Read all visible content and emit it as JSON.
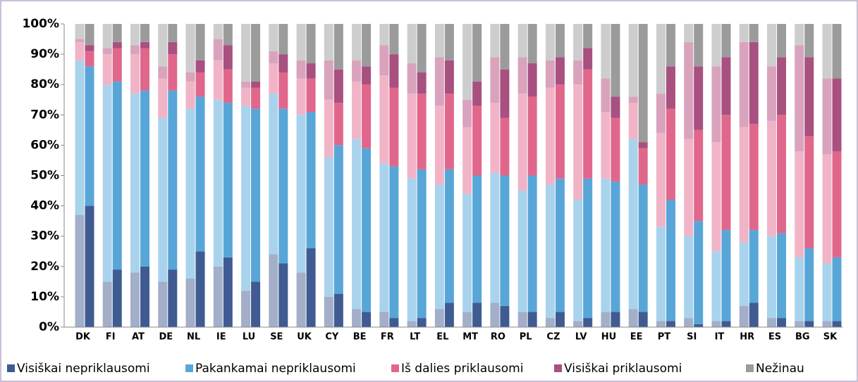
{
  "chart_data": {
    "type": "stacked_bar_pairs",
    "categories": [
      "DK",
      "FI",
      "AT",
      "DE",
      "NL",
      "IE",
      "LU",
      "SE",
      "UK",
      "CY",
      "BE",
      "FR",
      "LT",
      "EL",
      "MT",
      "RO",
      "PL",
      "CZ",
      "LV",
      "HU",
      "EE",
      "PT",
      "SI",
      "IT",
      "HR",
      "ES",
      "BG",
      "SK"
    ],
    "ylim": [
      0,
      100
    ],
    "yticks": [
      {
        "value": 0,
        "label": "0%"
      },
      {
        "value": 10,
        "label": "10%"
      },
      {
        "value": 20,
        "label": "20%"
      },
      {
        "value": 30,
        "label": "30%"
      },
      {
        "value": 40,
        "label": "40%"
      },
      {
        "value": 50,
        "label": "50%"
      },
      {
        "value": 60,
        "label": "60%"
      },
      {
        "value": 70,
        "label": "70%"
      },
      {
        "value": 80,
        "label": "80%"
      },
      {
        "value": 90,
        "label": "90%"
      },
      {
        "value": 100,
        "label": "100%"
      }
    ],
    "legend": "bottom",
    "series": [
      {
        "name": "Visiškai nepriklausomi",
        "color": "#3f5b92",
        "prev_color": "#a3aec8",
        "prev_values": [
          37,
          15,
          18,
          15,
          16,
          20,
          12,
          24,
          18,
          10,
          6,
          5,
          2,
          6,
          5,
          8,
          5,
          3,
          2,
          5,
          6,
          2,
          3,
          2,
          7,
          3,
          2,
          2
        ],
        "values": [
          40,
          19,
          20,
          19,
          25,
          23,
          15,
          21,
          26,
          11,
          5,
          3,
          3,
          8,
          8,
          7,
          5,
          5,
          3,
          5,
          5,
          2,
          1,
          2,
          8,
          3,
          2,
          2
        ]
      },
      {
        "name": "Pakankamai nepriklausomi",
        "color": "#58a6d8",
        "prev_color": "#a9d3ed",
        "prev_values": [
          51,
          65,
          59,
          54,
          56,
          55,
          61,
          53,
          52,
          46,
          56,
          49,
          47,
          41,
          39,
          43,
          40,
          44,
          40,
          44,
          56,
          31,
          27,
          23,
          21,
          27,
          21,
          19
        ],
        "values": [
          46,
          62,
          58,
          59,
          51,
          51,
          57,
          51,
          45,
          49,
          54,
          50,
          49,
          44,
          42,
          43,
          45,
          44,
          46,
          43,
          42,
          40,
          34,
          30,
          24,
          28,
          24,
          21
        ]
      },
      {
        "name": "Iš dalies priklausomi",
        "color": "#e0678b",
        "prev_color": "#f1b4c7",
        "prev_values": [
          6,
          10,
          13,
          13,
          9,
          13,
          6,
          10,
          12,
          19,
          19,
          29,
          28,
          26,
          22,
          23,
          32,
          32,
          38,
          22,
          12,
          31,
          32,
          36,
          38,
          38,
          35,
          36
        ],
        "values": [
          5,
          11,
          14,
          12,
          8,
          11,
          7,
          12,
          11,
          14,
          21,
          26,
          25,
          25,
          23,
          19,
          26,
          31,
          36,
          21,
          12,
          30,
          30,
          38,
          35,
          39,
          37,
          35
        ]
      },
      {
        "name": "Visiškai priklausomi",
        "color": "#a8507f",
        "prev_color": "#d9a3bd",
        "prev_values": [
          1,
          2,
          3,
          4,
          3,
          7,
          2,
          4,
          6,
          13,
          7,
          10,
          10,
          16,
          9,
          15,
          12,
          9,
          8,
          11,
          2,
          13,
          32,
          25,
          28,
          18,
          35,
          25
        ],
        "values": [
          2,
          2,
          2,
          4,
          4,
          8,
          2,
          6,
          5,
          11,
          6,
          11,
          7,
          11,
          8,
          16,
          11,
          9,
          7,
          7,
          2,
          14,
          21,
          19,
          27,
          19,
          26,
          24
        ]
      },
      {
        "name": "Nežinau",
        "color": "#9b9b9b",
        "prev_color": "#cdcdcd",
        "prev_values": [
          5,
          8,
          7,
          14,
          16,
          5,
          19,
          9,
          12,
          12,
          12,
          7,
          13,
          11,
          25,
          11,
          11,
          12,
          12,
          18,
          24,
          23,
          6,
          14,
          6,
          14,
          7,
          18
        ],
        "values": [
          7,
          6,
          6,
          6,
          12,
          7,
          19,
          10,
          13,
          15,
          14,
          10,
          16,
          12,
          19,
          15,
          13,
          11,
          8,
          24,
          39,
          14,
          14,
          11,
          6,
          11,
          11,
          18
        ]
      }
    ]
  }
}
